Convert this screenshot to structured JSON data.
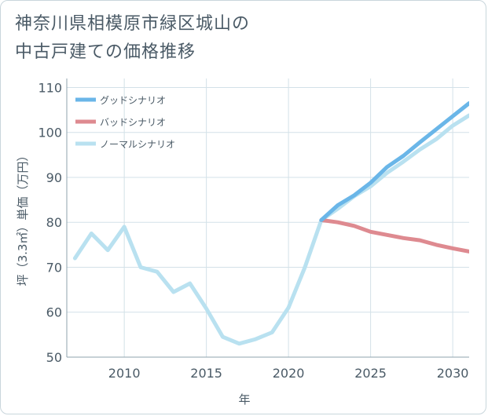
{
  "title": {
    "line1": "神奈川県相模原市緑区城山の",
    "line2": "中古戸建ての価格推移"
  },
  "chart_data": {
    "type": "line",
    "xlabel": "年",
    "ylabel": "坪（3.3㎡）単価（万円）",
    "xlim": [
      2006.5,
      2031
    ],
    "ylim": [
      50,
      112
    ],
    "x_ticks": [
      2010,
      2015,
      2020,
      2025,
      2030
    ],
    "y_ticks": [
      50,
      60,
      70,
      80,
      90,
      100,
      110
    ],
    "grid": true,
    "legend_position": "top-left",
    "series": [
      {
        "name": "グッドシナリオ",
        "color": "#6ab6e8",
        "x": [
          2022,
          2023,
          2024,
          2025,
          2026,
          2027,
          2028,
          2029,
          2030,
          2031
        ],
        "y": [
          80.5,
          83.8,
          86,
          88.8,
          92.3,
          94.8,
          97.8,
          100.7,
          103.6,
          106.5
        ]
      },
      {
        "name": "バッドシナリオ",
        "color": "#de8a90",
        "x": [
          2022,
          2023,
          2024,
          2025,
          2026,
          2027,
          2028,
          2029,
          2030,
          2031
        ],
        "y": [
          80.5,
          80,
          79.2,
          77.9,
          77.2,
          76.5,
          76,
          75,
          74.2,
          73.5
        ]
      },
      {
        "name": "ノーマルシナリオ",
        "color": "#b9e1f0",
        "x": [
          2007,
          2008,
          2009,
          2010,
          2011,
          2012,
          2013,
          2014,
          2015,
          2016,
          2017,
          2018,
          2019,
          2020,
          2021,
          2022,
          2023,
          2024,
          2025,
          2026,
          2027,
          2028,
          2029,
          2030,
          2031
        ],
        "y": [
          72,
          77.5,
          73.8,
          79,
          70,
          69,
          64.5,
          66.4,
          60.8,
          54.5,
          53,
          54,
          55.5,
          61,
          70,
          80.5,
          83,
          85.8,
          88,
          91,
          93.5,
          96.2,
          98.5,
          101.5,
          103.8
        ]
      }
    ]
  }
}
